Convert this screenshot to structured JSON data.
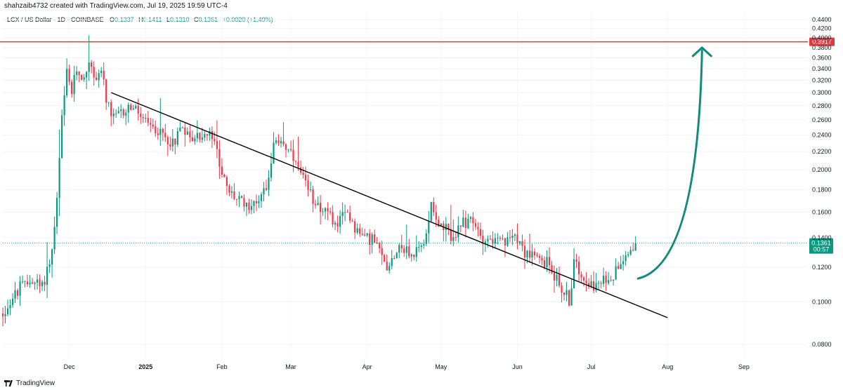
{
  "header": {
    "credit": "shahzaib4732 created with TradingView.com, Jul 19, 2025 19:59 UTC-4"
  },
  "legend": {
    "symbol": "LCX / US Dollar · 1D · COINBASE",
    "open_label": "O",
    "open": "0.1337",
    "high_label": "H",
    "high": "0.1411",
    "low_label": "L",
    "low": "0.1310",
    "close_label": "C",
    "close": "0.1361",
    "change": "+0.0020 (+1.49%)"
  },
  "footer": {
    "brand": "TradingView"
  },
  "colors": {
    "up": "#089981",
    "down": "#f23645",
    "resistance": "#e03a3e",
    "arrow": "#138a7e",
    "trendline": "#000000",
    "price_badge": "#089981"
  },
  "chart_data": {
    "type": "candlestick",
    "symbol": "LCX / US Dollar",
    "interval": "1D",
    "exchange": "COINBASE",
    "y_scale": "log",
    "ylim": [
      0.074,
      0.46
    ],
    "y_ticks": [
      "0.4400",
      "0.4200",
      "0.4000",
      "0.3800",
      "0.3600",
      "0.3400",
      "0.3200",
      "0.3000",
      "0.2800",
      "0.2600",
      "0.2400",
      "0.2200",
      "0.2000",
      "0.1800",
      "0.1600",
      "0.1400",
      "0.1200",
      "0.1000",
      "0.0800"
    ],
    "x_range": [
      "2024-11-04",
      "2025-09-27"
    ],
    "x_labels": [
      {
        "date": "2024-12-01",
        "label": "Dec"
      },
      {
        "date": "2025-01-01",
        "label": "2025",
        "bold": true
      },
      {
        "date": "2025-02-01",
        "label": "Feb"
      },
      {
        "date": "2025-03-01",
        "label": "Mar"
      },
      {
        "date": "2025-04-01",
        "label": "Apr"
      },
      {
        "date": "2025-05-01",
        "label": "May"
      },
      {
        "date": "2025-06-01",
        "label": "Jun"
      },
      {
        "date": "2025-07-01",
        "label": "Jul"
      },
      {
        "date": "2025-08-01",
        "label": "Aug"
      },
      {
        "date": "2025-09-01",
        "label": "Sep"
      }
    ],
    "resistance": {
      "price": 0.3917,
      "label": "0.3917"
    },
    "last_price": {
      "price": 0.1361,
      "label": "0.1361",
      "countdown": "00:57"
    },
    "trendline": {
      "start": {
        "date": "2024-12-18",
        "price": 0.3
      },
      "end": {
        "date": "2025-08-01",
        "price": 0.092
      }
    },
    "projection_arrow": {
      "start": {
        "date": "2025-07-20",
        "price": 0.113
      },
      "end": {
        "date": "2025-08-15",
        "price": 0.38
      }
    },
    "price_path": [
      [
        "2024-11-04",
        0.094
      ],
      [
        "2024-11-11",
        0.108
      ],
      [
        "2024-11-16",
        0.112
      ],
      [
        "2024-11-20",
        0.108
      ],
      [
        "2024-11-24",
        0.13
      ],
      [
        "2024-11-26",
        0.17
      ],
      [
        "2024-11-28",
        0.26
      ],
      [
        "2024-11-30",
        0.33
      ],
      [
        "2024-12-02",
        0.3
      ],
      [
        "2024-12-04",
        0.34
      ],
      [
        "2024-12-07",
        0.32
      ],
      [
        "2024-12-09",
        0.36
      ],
      [
        "2024-12-11",
        0.32
      ],
      [
        "2024-12-14",
        0.34
      ],
      [
        "2024-12-16",
        0.29
      ],
      [
        "2024-12-18",
        0.26
      ],
      [
        "2024-12-22",
        0.27
      ],
      [
        "2024-12-26",
        0.28
      ],
      [
        "2024-12-30",
        0.265
      ],
      [
        "2025-01-03",
        0.25
      ],
      [
        "2025-01-08",
        0.24
      ],
      [
        "2025-01-12",
        0.23
      ],
      [
        "2025-01-16",
        0.255
      ],
      [
        "2025-01-19",
        0.235
      ],
      [
        "2025-01-23",
        0.24
      ],
      [
        "2025-01-28",
        0.238
      ],
      [
        "2025-01-31",
        0.21
      ],
      [
        "2025-02-03",
        0.18
      ],
      [
        "2025-02-08",
        0.17
      ],
      [
        "2025-02-14",
        0.166
      ],
      [
        "2025-02-19",
        0.185
      ],
      [
        "2025-02-22",
        0.225
      ],
      [
        "2025-02-25",
        0.235
      ],
      [
        "2025-02-28",
        0.22
      ],
      [
        "2025-03-04",
        0.2
      ],
      [
        "2025-03-08",
        0.178
      ],
      [
        "2025-03-14",
        0.163
      ],
      [
        "2025-03-19",
        0.15
      ],
      [
        "2025-03-24",
        0.16
      ],
      [
        "2025-03-29",
        0.142
      ],
      [
        "2025-04-03",
        0.14
      ],
      [
        "2025-04-06",
        0.13
      ],
      [
        "2025-04-09",
        0.12
      ],
      [
        "2025-04-14",
        0.135
      ],
      [
        "2025-04-19",
        0.127
      ],
      [
        "2025-04-24",
        0.135
      ],
      [
        "2025-04-27",
        0.17
      ],
      [
        "2025-04-30",
        0.15
      ],
      [
        "2025-05-06",
        0.14
      ],
      [
        "2025-05-12",
        0.155
      ],
      [
        "2025-05-18",
        0.14
      ],
      [
        "2025-05-24",
        0.137
      ],
      [
        "2025-05-28",
        0.136
      ],
      [
        "2025-05-31",
        0.145
      ],
      [
        "2025-06-04",
        0.13
      ],
      [
        "2025-06-09",
        0.125
      ],
      [
        "2025-06-14",
        0.122
      ],
      [
        "2025-06-18",
        0.11
      ],
      [
        "2025-06-22",
        0.1
      ],
      [
        "2025-06-24",
        0.122
      ],
      [
        "2025-06-28",
        0.115
      ],
      [
        "2025-07-03",
        0.108
      ],
      [
        "2025-07-07",
        0.112
      ],
      [
        "2025-07-10",
        0.115
      ],
      [
        "2025-07-13",
        0.125
      ],
      [
        "2025-07-16",
        0.13
      ],
      [
        "2025-07-19",
        0.1361
      ]
    ]
  }
}
